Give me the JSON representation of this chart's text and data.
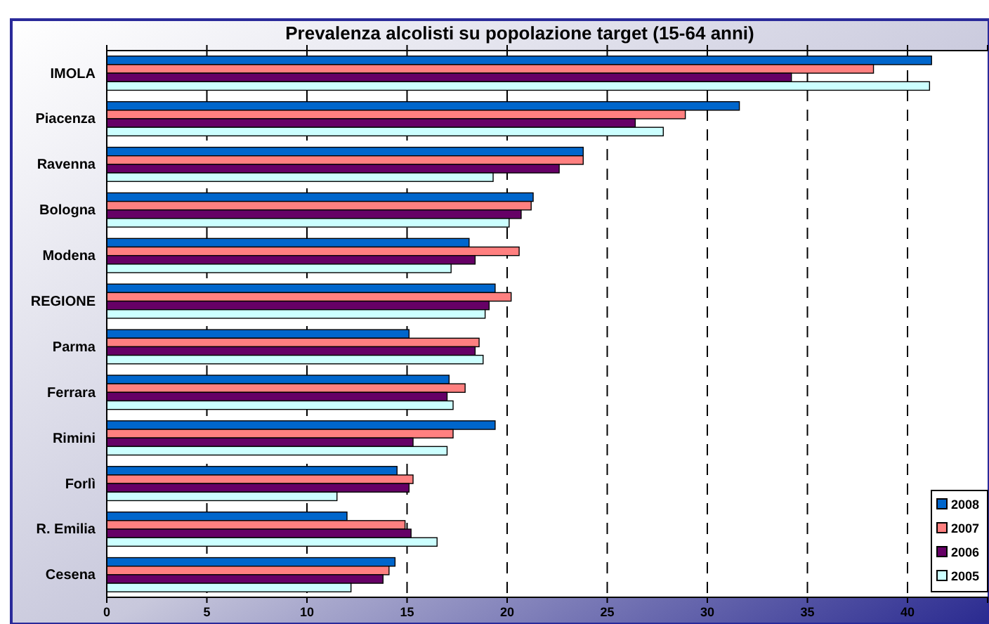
{
  "chart_data": {
    "type": "bar",
    "orientation": "horizontal",
    "title": "Prevalenza alcolisti su popolazione target (15-64 anni)",
    "categories": [
      "IMOLA",
      "Piacenza",
      "Ravenna",
      "Bologna",
      "Modena",
      "REGIONE",
      "Parma",
      "Ferrara",
      "Rimini",
      "Forlì",
      "R. Emilia",
      "Cesena"
    ],
    "series": [
      {
        "name": "2008",
        "color": "#0066cc",
        "values": [
          41.2,
          31.6,
          23.8,
          21.3,
          18.1,
          19.4,
          15.1,
          17.1,
          19.4,
          14.5,
          12.0,
          14.4
        ]
      },
      {
        "name": "2007",
        "color": "#ff8080",
        "values": [
          38.3,
          28.9,
          23.8,
          21.2,
          20.6,
          20.2,
          18.6,
          17.9,
          17.3,
          15.3,
          14.9,
          14.1
        ]
      },
      {
        "name": "2006",
        "color": "#660066",
        "values": [
          34.2,
          26.4,
          22.6,
          20.7,
          18.4,
          19.1,
          18.4,
          17.0,
          15.3,
          15.1,
          15.2,
          13.8
        ]
      },
      {
        "name": "2005",
        "color": "#ccffff",
        "values": [
          41.1,
          27.8,
          19.3,
          20.1,
          17.2,
          18.9,
          18.8,
          17.3,
          17.0,
          11.5,
          16.5,
          12.2
        ]
      }
    ],
    "xlim": [
      0,
      44
    ],
    "xticks": [
      0,
      5,
      10,
      15,
      20,
      25,
      30,
      35,
      40
    ],
    "grid": "x",
    "legend": "bottom right"
  }
}
